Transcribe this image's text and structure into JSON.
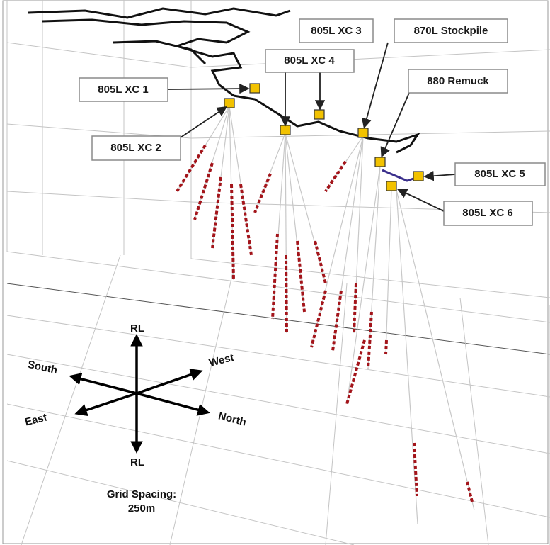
{
  "labels": [
    "805L XC 3",
    "870L Stockpile",
    "805L XC 4",
    "880 Remuck",
    "805L XC 1",
    "805L XC 2",
    "805L XC 5",
    "805L XC 6"
  ],
  "compass": {
    "up": "RL",
    "down": "RL",
    "south": "South",
    "west": "West",
    "east": "East",
    "north": "North"
  },
  "note": [
    "Grid Spacing:",
    "250m"
  ]
}
